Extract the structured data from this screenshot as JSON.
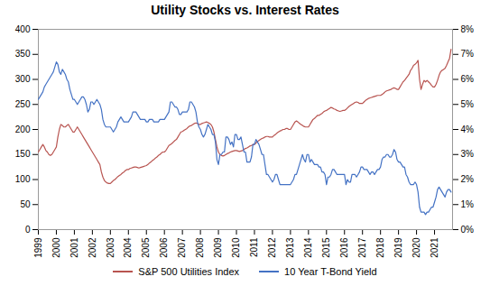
{
  "chart_data": {
    "type": "line",
    "title": "Utility Stocks vs. Interest Rates",
    "x": [
      1999,
      1999.0833,
      1999.1667,
      1999.25,
      1999.3333,
      1999.4167,
      1999.5,
      1999.5833,
      1999.6667,
      1999.75,
      1999.8333,
      1999.9167,
      2000,
      2000.0833,
      2000.1667,
      2000.25,
      2000.3333,
      2000.4167,
      2000.5,
      2000.5833,
      2000.6667,
      2000.75,
      2000.8333,
      2000.9167,
      2001,
      2001.0833,
      2001.1667,
      2001.25,
      2001.3333,
      2001.4167,
      2001.5,
      2001.5833,
      2001.6667,
      2001.75,
      2001.8333,
      2001.9167,
      2002,
      2002.0833,
      2002.1667,
      2002.25,
      2002.3333,
      2002.4167,
      2002.5,
      2002.5833,
      2002.6667,
      2002.75,
      2002.8333,
      2002.9167,
      2003,
      2003.0833,
      2003.1667,
      2003.25,
      2003.3333,
      2003.4167,
      2003.5,
      2003.5833,
      2003.6667,
      2003.75,
      2003.8333,
      2003.9167,
      2004,
      2004.0833,
      2004.1667,
      2004.25,
      2004.3333,
      2004.4167,
      2004.5,
      2004.5833,
      2004.6667,
      2004.75,
      2004.8333,
      2004.9167,
      2005,
      2005.0833,
      2005.1667,
      2005.25,
      2005.3333,
      2005.4167,
      2005.5,
      2005.5833,
      2005.6667,
      2005.75,
      2005.8333,
      2005.9167,
      2006,
      2006.0833,
      2006.1667,
      2006.25,
      2006.3333,
      2006.4167,
      2006.5,
      2006.5833,
      2006.6667,
      2006.75,
      2006.8333,
      2006.9167,
      2007,
      2007.0833,
      2007.1667,
      2007.25,
      2007.3333,
      2007.4167,
      2007.5,
      2007.5833,
      2007.6667,
      2007.75,
      2007.8333,
      2007.9167,
      2008,
      2008.0833,
      2008.1667,
      2008.25,
      2008.3333,
      2008.4167,
      2008.5,
      2008.5833,
      2008.6667,
      2008.75,
      2008.8333,
      2008.9167,
      2009,
      2009.0833,
      2009.1667,
      2009.25,
      2009.3333,
      2009.4167,
      2009.5,
      2009.5833,
      2009.6667,
      2009.75,
      2009.8333,
      2009.9167,
      2010,
      2010.0833,
      2010.1667,
      2010.25,
      2010.3333,
      2010.4167,
      2010.5,
      2010.5833,
      2010.6667,
      2010.75,
      2010.8333,
      2010.9167,
      2011,
      2011.0833,
      2011.1667,
      2011.25,
      2011.3333,
      2011.4167,
      2011.5,
      2011.5833,
      2011.6667,
      2011.75,
      2011.8333,
      2011.9167,
      2012,
      2012.0833,
      2012.1667,
      2012.25,
      2012.3333,
      2012.4167,
      2012.5,
      2012.5833,
      2012.6667,
      2012.75,
      2012.8333,
      2012.9167,
      2013,
      2013.0833,
      2013.1667,
      2013.25,
      2013.3333,
      2013.4167,
      2013.5,
      2013.5833,
      2013.6667,
      2013.75,
      2013.8333,
      2013.9167,
      2014,
      2014.0833,
      2014.1667,
      2014.25,
      2014.3333,
      2014.4167,
      2014.5,
      2014.5833,
      2014.6667,
      2014.75,
      2014.8333,
      2014.9167,
      2015,
      2015.0833,
      2015.1667,
      2015.25,
      2015.3333,
      2015.4167,
      2015.5,
      2015.5833,
      2015.6667,
      2015.75,
      2015.8333,
      2015.9167,
      2016,
      2016.0833,
      2016.1667,
      2016.25,
      2016.3333,
      2016.4167,
      2016.5,
      2016.5833,
      2016.6667,
      2016.75,
      2016.8333,
      2016.9167,
      2017,
      2017.0833,
      2017.1667,
      2017.25,
      2017.3333,
      2017.4167,
      2017.5,
      2017.5833,
      2017.6667,
      2017.75,
      2017.8333,
      2017.9167,
      2018,
      2018.0833,
      2018.1667,
      2018.25,
      2018.3333,
      2018.4167,
      2018.5,
      2018.5833,
      2018.6667,
      2018.75,
      2018.8333,
      2018.9167,
      2019,
      2019.0833,
      2019.1667,
      2019.25,
      2019.3333,
      2019.4167,
      2019.5,
      2019.5833,
      2019.6667,
      2019.75,
      2019.8333,
      2019.9167,
      2020,
      2020.0833,
      2020.1667,
      2020.25,
      2020.3333,
      2020.4167,
      2020.5,
      2020.5833,
      2020.6667,
      2020.75,
      2020.8333,
      2020.9167,
      2021,
      2021.0833,
      2021.1667,
      2021.25,
      2021.3333,
      2021.4167,
      2021.5,
      2021.5833,
      2021.6667,
      2021.75,
      2021.8333,
      2021.9167
    ],
    "xlim": [
      1999,
      2022
    ],
    "xticks": [
      1999,
      2000,
      2001,
      2002,
      2003,
      2004,
      2005,
      2006,
      2007,
      2008,
      2009,
      2010,
      2011,
      2012,
      2013,
      2014,
      2015,
      2016,
      2017,
      2018,
      2019,
      2020,
      2021
    ],
    "ylim": [
      0,
      400
    ],
    "yticks": [
      0,
      50,
      100,
      150,
      200,
      250,
      300,
      350,
      400
    ],
    "y2lim": [
      0.0,
      0.08
    ],
    "y2ticks": [
      {
        "value": 0.0,
        "label": "0%"
      },
      {
        "value": 0.01,
        "label": "1%"
      },
      {
        "value": 0.02,
        "label": "2%"
      },
      {
        "value": 0.03,
        "label": "3%"
      },
      {
        "value": 0.04,
        "label": "4%"
      },
      {
        "value": 0.05,
        "label": "5%"
      },
      {
        "value": 0.06,
        "label": "6%"
      },
      {
        "value": 0.07,
        "label": "7%"
      },
      {
        "value": 0.08,
        "label": "8%"
      }
    ],
    "grid": false,
    "legend": "bottom",
    "series": [
      {
        "name": "S&P 500 Utilities Index",
        "color": "#B85450",
        "values": [
          155,
          160,
          165,
          170,
          165,
          158,
          155,
          150,
          148,
          150,
          155,
          160,
          165,
          185,
          200,
          210,
          208,
          205,
          205,
          208,
          210,
          205,
          200,
          195,
          195,
          200,
          205,
          200,
          195,
          190,
          185,
          180,
          175,
          170,
          165,
          160,
          155,
          150,
          145,
          140,
          135,
          130,
          115,
          105,
          98,
          95,
          93,
          92,
          92,
          95,
          98,
          100,
          103,
          106,
          108,
          110,
          113,
          115,
          118,
          120,
          120,
          122,
          123,
          124,
          125,
          125,
          124,
          123,
          124,
          125,
          126,
          127,
          128,
          130,
          133,
          135,
          138,
          140,
          143,
          145,
          148,
          150,
          153,
          155,
          155,
          158,
          163,
          168,
          170,
          172,
          175,
          178,
          180,
          185,
          190,
          195,
          196,
          198,
          200,
          202,
          205,
          207,
          208,
          210,
          212,
          213,
          212,
          210,
          210,
          212,
          213,
          214,
          215,
          214,
          212,
          210,
          205,
          195,
          180,
          165,
          155,
          150,
          148,
          147,
          148,
          150,
          152,
          153,
          155,
          156,
          157,
          158,
          158,
          157,
          156,
          157,
          158,
          160,
          162,
          163,
          165,
          167,
          168,
          170,
          170,
          173,
          176,
          178,
          180,
          182,
          183,
          185,
          186,
          186,
          185,
          185,
          185,
          188,
          190,
          193,
          195,
          197,
          198,
          200,
          200,
          202,
          202,
          200,
          200,
          205,
          210,
          215,
          217,
          215,
          212,
          210,
          208,
          206,
          205,
          205,
          205,
          210,
          215,
          220,
          222,
          225,
          228,
          228,
          230,
          232,
          235,
          237,
          238,
          240,
          242,
          244,
          243,
          241,
          240,
          238,
          237,
          236,
          237,
          238,
          238,
          240,
          243,
          246,
          248,
          250,
          252,
          254,
          255,
          254,
          252,
          252,
          252,
          255,
          258,
          260,
          262,
          263,
          264,
          265,
          266,
          267,
          268,
          268,
          268,
          270,
          272,
          275,
          277,
          278,
          279,
          280,
          282,
          283,
          282,
          280,
          280,
          285,
          290,
          295,
          298,
          302,
          306,
          310,
          318,
          322,
          328,
          330,
          333,
          338,
          300,
          280,
          290,
          298,
          295,
          298,
          295,
          292,
          288,
          285,
          285,
          290,
          298,
          308,
          315,
          318,
          320,
          322,
          328,
          335,
          342,
          360
        ]
      },
      {
        "name": "10 Year T-Bond Yield",
        "color": "#4472C4",
        "axis": "y2",
        "values": [
          0.052,
          0.053,
          0.054,
          0.055,
          0.057,
          0.058,
          0.059,
          0.06,
          0.061,
          0.062,
          0.063,
          0.065,
          0.067,
          0.066,
          0.063,
          0.062,
          0.064,
          0.063,
          0.062,
          0.06,
          0.059,
          0.056,
          0.054,
          0.052,
          0.052,
          0.051,
          0.05,
          0.051,
          0.052,
          0.053,
          0.053,
          0.052,
          0.05,
          0.047,
          0.048,
          0.051,
          0.051,
          0.05,
          0.051,
          0.052,
          0.051,
          0.05,
          0.048,
          0.044,
          0.042,
          0.041,
          0.041,
          0.041,
          0.041,
          0.04,
          0.039,
          0.04,
          0.041,
          0.043,
          0.044,
          0.045,
          0.044,
          0.043,
          0.043,
          0.043,
          0.043,
          0.044,
          0.045,
          0.047,
          0.047,
          0.047,
          0.046,
          0.045,
          0.044,
          0.044,
          0.044,
          0.044,
          0.043,
          0.043,
          0.044,
          0.044,
          0.044,
          0.043,
          0.043,
          0.043,
          0.043,
          0.044,
          0.044,
          0.044,
          0.044,
          0.045,
          0.046,
          0.047,
          0.051,
          0.051,
          0.05,
          0.049,
          0.049,
          0.048,
          0.046,
          0.046,
          0.047,
          0.047,
          0.047,
          0.047,
          0.048,
          0.051,
          0.051,
          0.05,
          0.049,
          0.047,
          0.043,
          0.041,
          0.04,
          0.038,
          0.037,
          0.038,
          0.04,
          0.042,
          0.041,
          0.04,
          0.038,
          0.038,
          0.035,
          0.028,
          0.026,
          0.03,
          0.03,
          0.031,
          0.031,
          0.037,
          0.037,
          0.036,
          0.034,
          0.035,
          0.033,
          0.038,
          0.038,
          0.036,
          0.036,
          0.037,
          0.034,
          0.031,
          0.031,
          0.027,
          0.027,
          0.027,
          0.029,
          0.034,
          0.034,
          0.036,
          0.035,
          0.034,
          0.032,
          0.03,
          0.03,
          0.026,
          0.022,
          0.022,
          0.021,
          0.02,
          0.019,
          0.02,
          0.022,
          0.022,
          0.02,
          0.018,
          0.018,
          0.018,
          0.018,
          0.018,
          0.018,
          0.018,
          0.018,
          0.019,
          0.02,
          0.022,
          0.022,
          0.024,
          0.026,
          0.028,
          0.03,
          0.028,
          0.027,
          0.03,
          0.03,
          0.027,
          0.028,
          0.027,
          0.026,
          0.026,
          0.026,
          0.025,
          0.025,
          0.023,
          0.023,
          0.022,
          0.018,
          0.021,
          0.021,
          0.022,
          0.024,
          0.024,
          0.023,
          0.022,
          0.022,
          0.022,
          0.022,
          0.022,
          0.022,
          0.018,
          0.02,
          0.019,
          0.019,
          0.022,
          0.022,
          0.022,
          0.021,
          0.022,
          0.023,
          0.025,
          0.025,
          0.024,
          0.024,
          0.024,
          0.023,
          0.022,
          0.023,
          0.023,
          0.022,
          0.023,
          0.024,
          0.024,
          0.025,
          0.028,
          0.029,
          0.029,
          0.03,
          0.03,
          0.029,
          0.029,
          0.03,
          0.032,
          0.031,
          0.028,
          0.027,
          0.027,
          0.026,
          0.025,
          0.025,
          0.022,
          0.021,
          0.019,
          0.018,
          0.018,
          0.018,
          0.019,
          0.018,
          0.015,
          0.009,
          0.007,
          0.007,
          0.007,
          0.006,
          0.007,
          0.007,
          0.008,
          0.009,
          0.009,
          0.011,
          0.013,
          0.016,
          0.017,
          0.016,
          0.015,
          0.014,
          0.013,
          0.015,
          0.016,
          0.016,
          0.015
        ]
      }
    ]
  }
}
